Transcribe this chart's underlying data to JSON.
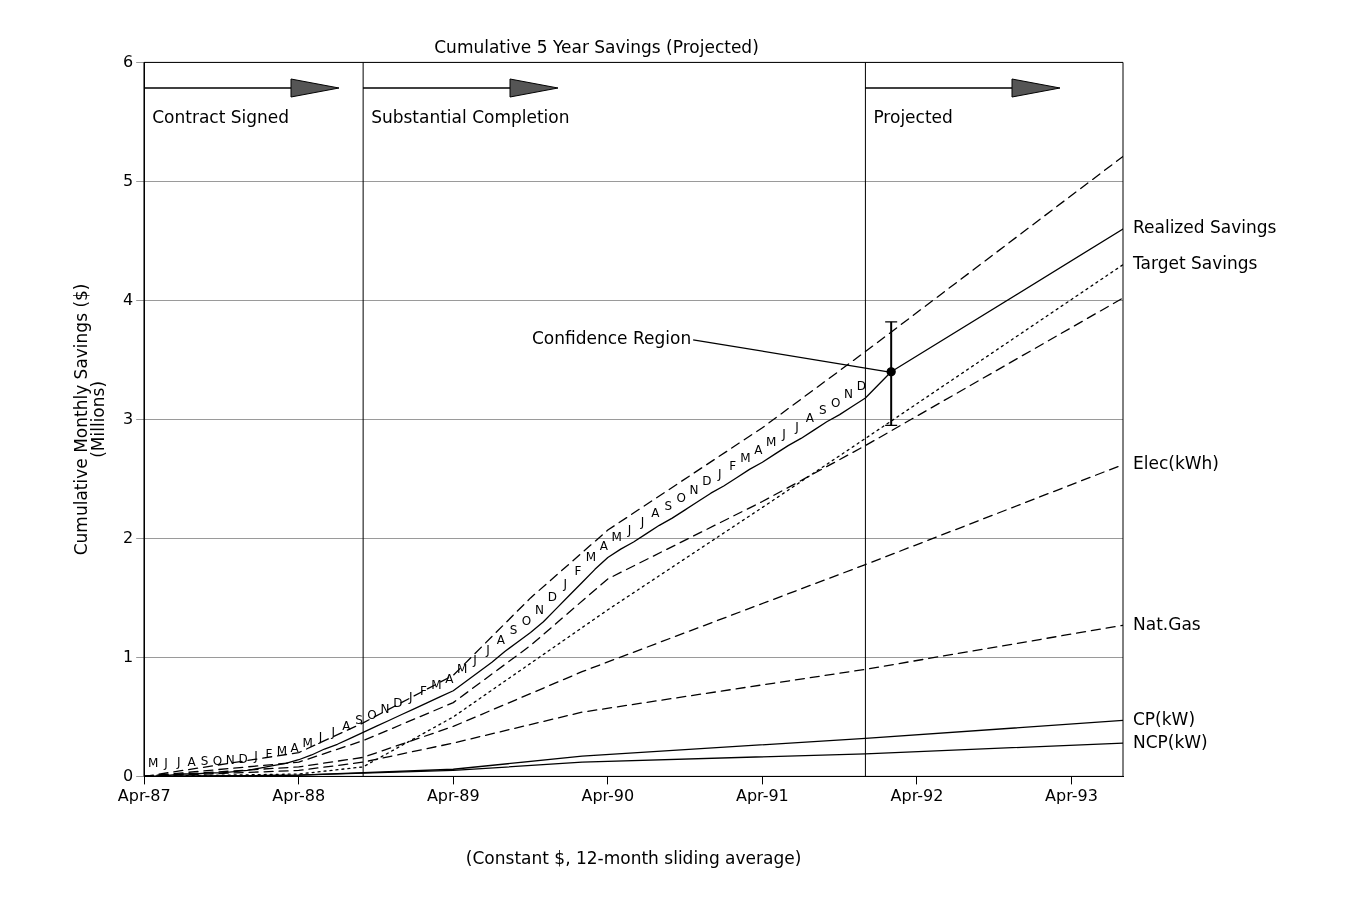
{
  "chart_data": {
    "type": "line",
    "title": "Cumulative 5 Year Savings (Projected)",
    "xlabel": "(Constant $, 12-month sliding average)",
    "ylabel": "Cumulative Monthly Savings ($)\n(Millions)",
    "xlim": [
      "1987-04",
      "1993-08"
    ],
    "ylim": [
      0,
      6
    ],
    "xticks": [
      {
        "value": "1987-04",
        "label": "Apr-87"
      },
      {
        "value": "1988-04",
        "label": "Apr-88"
      },
      {
        "value": "1989-04",
        "label": "Apr-89"
      },
      {
        "value": "1990-04",
        "label": "Apr-90"
      },
      {
        "value": "1991-04",
        "label": "Apr-91"
      },
      {
        "value": "1992-04",
        "label": "Apr-92"
      },
      {
        "value": "1993-04",
        "label": "Apr-93"
      }
    ],
    "yticks": [
      0,
      1,
      2,
      3,
      4,
      5,
      6
    ],
    "grid": "y",
    "marker": "none",
    "ref_lines": [
      {
        "axis": "x",
        "value": "1987-04",
        "label": "Contract Signed",
        "color": "#000000"
      },
      {
        "axis": "x",
        "value": "1988-09",
        "label": "Substantial Completion",
        "color": "#000000"
      },
      {
        "axis": "x",
        "value": "1991-12",
        "label": "Projected",
        "color": "#000000"
      }
    ],
    "annotations": [
      {
        "text": "Confidence Region",
        "x": "1992-02",
        "y": 3.4
      }
    ],
    "series": [
      {
        "name": "Realized Savings",
        "color": "#000000",
        "line_style": "solid",
        "x": [
          "1987-05",
          "1987-06",
          "1987-07",
          "1987-08",
          "1987-09",
          "1987-10",
          "1987-11",
          "1987-12",
          "1988-01",
          "1988-02",
          "1988-03",
          "1988-04",
          "1988-05",
          "1988-06",
          "1988-07",
          "1988-08",
          "1988-09",
          "1988-10",
          "1988-11",
          "1988-12",
          "1989-01",
          "1989-02",
          "1989-03",
          "1989-04",
          "1989-05",
          "1989-06",
          "1989-07",
          "1989-08",
          "1989-09",
          "1989-10",
          "1989-11",
          "1989-12",
          "1990-01",
          "1990-02",
          "1990-03",
          "1990-04",
          "1990-05",
          "1990-06",
          "1990-07",
          "1990-08",
          "1990-09",
          "1990-10",
          "1990-11",
          "1990-12",
          "1991-01",
          "1991-02",
          "1991-03",
          "1991-04",
          "1991-05",
          "1991-06",
          "1991-07",
          "1991-08",
          "1991-09",
          "1991-10",
          "1991-11",
          "1991-12",
          "1992-02",
          "1993-08"
        ],
        "values": [
          0.01,
          0.01,
          0.02,
          0.02,
          0.03,
          0.03,
          0.04,
          0.05,
          0.07,
          0.09,
          0.11,
          0.14,
          0.18,
          0.23,
          0.27,
          0.32,
          0.37,
          0.42,
          0.47,
          0.52,
          0.57,
          0.62,
          0.67,
          0.72,
          0.8,
          0.88,
          0.96,
          1.05,
          1.13,
          1.21,
          1.3,
          1.41,
          1.52,
          1.63,
          1.74,
          1.84,
          1.91,
          1.97,
          2.04,
          2.11,
          2.17,
          2.24,
          2.31,
          2.38,
          2.44,
          2.51,
          2.58,
          2.64,
          2.71,
          2.78,
          2.84,
          2.91,
          2.98,
          3.04,
          3.11,
          3.18,
          3.4,
          4.6
        ],
        "value_labels": [
          "M",
          "J",
          "J",
          "A",
          "S",
          "O",
          "N",
          "D",
          "J",
          "F",
          "M",
          "A",
          "M",
          "J",
          "J",
          "A",
          "S",
          "O",
          "N",
          "D",
          "J",
          "F",
          "M",
          "A",
          "M",
          "J",
          "J",
          "A",
          "S",
          "O",
          "N",
          "D",
          "J",
          "F",
          "M",
          "A",
          "M",
          "J",
          "J",
          "A",
          "S",
          "O",
          "N",
          "D",
          "J",
          "F",
          "M",
          "A",
          "M",
          "J",
          "J",
          "A",
          "S",
          "O",
          "N",
          "D",
          null,
          null
        ]
      },
      {
        "color": "#000000",
        "line_style": "dashed",
        "x": [
          "1987-04",
          "1988-04",
          "1988-09",
          "1989-04",
          "1989-10",
          "1990-04",
          "1991-04",
          "1991-12",
          "1993-08"
        ],
        "values": [
          0,
          0.2,
          0.45,
          0.85,
          1.5,
          2.07,
          2.93,
          3.57,
          5.21
        ]
      },
      {
        "name": "Target Savings",
        "color": "#000000",
        "line_style": "dotted",
        "x": [
          "1987-04",
          "1988-04",
          "1988-09",
          "1989-04",
          "1990-04",
          "1991-04",
          "1991-12",
          "1993-08"
        ],
        "values": [
          0,
          0.02,
          0.08,
          0.5,
          1.4,
          2.26,
          2.84,
          4.3
        ]
      },
      {
        "color": "#000000",
        "line_style": "dashed",
        "x": [
          "1987-04",
          "1988-04",
          "1988-09",
          "1989-04",
          "1989-10",
          "1990-04",
          "1991-04",
          "1991-12",
          "1993-08"
        ],
        "values": [
          0,
          0.12,
          0.3,
          0.62,
          1.1,
          1.66,
          2.31,
          2.78,
          4.02
        ]
      },
      {
        "name": "Elec(kWh)",
        "color": "#000000",
        "line_style": "dashed",
        "x": [
          "1987-04",
          "1988-04",
          "1988-09",
          "1989-04",
          "1990-02",
          "1991-12",
          "1993-08"
        ],
        "values": [
          0,
          0.08,
          0.16,
          0.42,
          0.88,
          1.78,
          2.62
        ]
      },
      {
        "name": "Nat.Gas",
        "color": "#000000",
        "line_style": "dashed",
        "x": [
          "1987-04",
          "1988-04",
          "1988-09",
          "1989-04",
          "1990-02",
          "1991-12",
          "1993-08"
        ],
        "values": [
          0,
          0.05,
          0.12,
          0.28,
          0.54,
          0.9,
          1.27
        ]
      },
      {
        "name": "CP(kW)",
        "color": "#000000",
        "line_style": "solid",
        "x": [
          "1987-04",
          "1988-04",
          "1989-04",
          "1990-02",
          "1991-12",
          "1993-08"
        ],
        "values": [
          0,
          0.01,
          0.06,
          0.17,
          0.32,
          0.47
        ]
      },
      {
        "name": "NCP(kW)",
        "color": "#000000",
        "line_style": "solid",
        "x": [
          "1987-04",
          "1988-04",
          "1989-04",
          "1990-02",
          "1991-12",
          "1993-08"
        ],
        "values": [
          0,
          0.01,
          0.05,
          0.12,
          0.19,
          0.28
        ]
      },
      {
        "type": "scatter",
        "color": "#000000",
        "marker": "circle",
        "x": [
          "1992-02"
        ],
        "values": [
          3.4
        ],
        "errors": [
          [
            2.95,
            3.82
          ]
        ]
      }
    ]
  }
}
